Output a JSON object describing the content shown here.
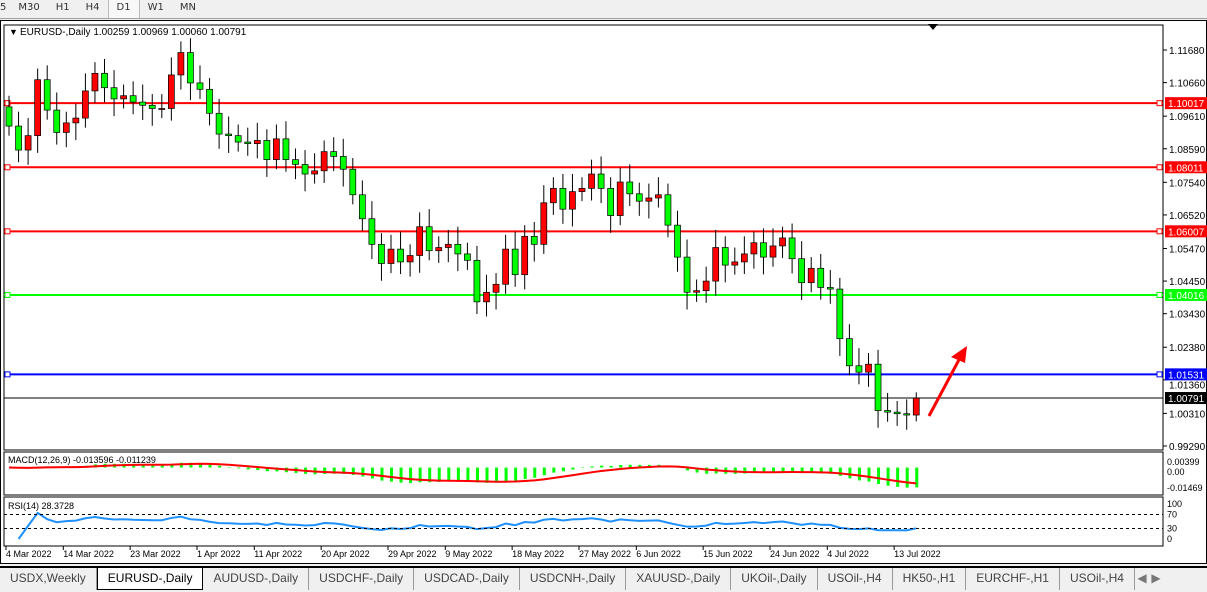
{
  "toolbar": {
    "timeframes": [
      "5",
      "M30",
      "H1",
      "H4",
      "D1",
      "W1",
      "MN"
    ],
    "active": "D1"
  },
  "chart": {
    "header": "EURUSD-,Daily  1.00259 1.00969 1.00060 1.00791",
    "symbol": "EURUSD-",
    "timeframe": "Daily",
    "ohlc": {
      "open": "1.00259",
      "high": "1.00969",
      "low": "1.00060",
      "close": "1.00791"
    },
    "colors": {
      "up": "#ff0000",
      "down": "#00ff00",
      "macd_hist": "#00ff00",
      "macd_signal": "#ff0000",
      "rsi": "#1e90ff"
    }
  },
  "chart_data": [
    {
      "type": "candlestick",
      "title": "EURUSD-,Daily",
      "ylim": [
        0.9929,
        1.1168
      ],
      "y_ticks": [
        "1.11680",
        "1.10660",
        "1.09610",
        "1.08590",
        "1.07540",
        "1.06520",
        "1.05470",
        "1.04450",
        "1.03430",
        "1.02380",
        "1.01360",
        "1.00310",
        "0.99290"
      ],
      "x_ticks": [
        {
          "i": 0,
          "label": "4 Mar 2022"
        },
        {
          "i": 6,
          "label": "14 Mar 2022"
        },
        {
          "i": 13,
          "label": "23 Mar 2022"
        },
        {
          "i": 20,
          "label": "1 Apr 2022"
        },
        {
          "i": 26,
          "label": "11 Apr 2022"
        },
        {
          "i": 33,
          "label": "20 Apr 2022"
        },
        {
          "i": 40,
          "label": "29 Apr 2022"
        },
        {
          "i": 46,
          "label": "9 May 2022"
        },
        {
          "i": 53,
          "label": "18 May 2022"
        },
        {
          "i": 60,
          "label": "27 May 2022"
        },
        {
          "i": 66,
          "label": "6 Jun 2022"
        },
        {
          "i": 73,
          "label": "15 Jun 2022"
        },
        {
          "i": 80,
          "label": "24 Jun 2022"
        },
        {
          "i": 86,
          "label": "4 Jul 2022"
        },
        {
          "i": 93,
          "label": "13 Jul 2022"
        }
      ],
      "first_open": 1.099,
      "closes": [
        1.093,
        1.0855,
        1.09,
        1.1075,
        1.098,
        1.091,
        1.094,
        1.0955,
        1.104,
        1.1095,
        1.105,
        1.1015,
        1.1025,
        1.1005,
        1.0995,
        1.0985,
        1.0985,
        1.109,
        1.116,
        1.1065,
        1.1045,
        1.097,
        1.0905,
        1.09,
        1.088,
        1.0875,
        1.0885,
        1.0825,
        1.089,
        1.0825,
        1.081,
        1.078,
        1.079,
        1.085,
        1.0835,
        1.0795,
        1.0715,
        1.064,
        1.056,
        1.05,
        1.0545,
        1.0505,
        1.0525,
        1.0615,
        1.054,
        1.055,
        1.056,
        1.053,
        1.051,
        1.038,
        1.041,
        1.0435,
        1.0545,
        1.0465,
        1.0585,
        1.056,
        1.069,
        1.0735,
        1.067,
        1.0725,
        1.0735,
        1.078,
        1.0735,
        1.065,
        1.0755,
        1.0718,
        1.0695,
        1.0705,
        1.0715,
        1.062,
        1.052,
        1.041,
        1.0415,
        1.0445,
        1.055,
        1.0495,
        1.0505,
        1.053,
        1.0565,
        1.052,
        1.0555,
        1.058,
        1.0515,
        1.044,
        1.0485,
        1.0425,
        1.042,
        1.0265,
        1.018,
        1.016,
        1.0185,
        1.004,
        1.0035,
        1.003,
        1.00259,
        1.00791
      ],
      "last_bar": {
        "high": 1.00969,
        "low": 1.0006
      },
      "hlines": [
        {
          "price": 1.10017,
          "label": "1.10017",
          "color": "#ff0000"
        },
        {
          "price": 1.08011,
          "label": "1.08011",
          "color": "#ff0000"
        },
        {
          "price": 1.06007,
          "label": "1.06007",
          "color": "#ff0000"
        },
        {
          "price": 1.04016,
          "label": "1.04016",
          "color": "#00ff00"
        },
        {
          "price": 1.01531,
          "label": "1.01531",
          "color": "#0000ff"
        },
        {
          "price": 1.00791,
          "label": "1.00791",
          "color": "#000000"
        }
      ],
      "annotation": {
        "type": "arrow",
        "color": "#ff0000",
        "direction": "up"
      }
    },
    {
      "type": "macd",
      "title": "MACD(12,26,9) -0.013596 -0.011239",
      "y_ticks": [
        "0.00399",
        "0.00",
        "-0.01469"
      ]
    },
    {
      "type": "rsi",
      "title": "RSI(14) 28.3728",
      "y_ticks": [
        "100",
        "70",
        "30",
        "0"
      ],
      "levels": [
        70,
        30
      ]
    }
  ],
  "tabs": [
    "USDX,Weekly",
    "EURUSD-,Daily",
    "AUDUSD-,Daily",
    "USDCHF-,Daily",
    "USDCAD-,Daily",
    "USDCNH-,Daily",
    "XAUUSD-,Daily",
    "UKOil-,Daily",
    "USOil-,H4",
    "HK50-,H1",
    "EURCHF-,H1",
    "USOil-,H4"
  ],
  "active_tab": "EURUSD-,Daily"
}
